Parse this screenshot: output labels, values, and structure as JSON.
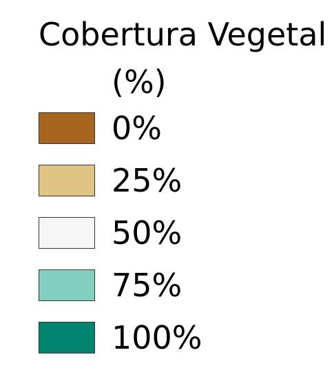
{
  "legend": {
    "title_line1": "Cobertura Vegetal",
    "title_line2": "(%)",
    "items": [
      {
        "label": "0%",
        "color": "#a76520"
      },
      {
        "label": "25%",
        "color": "#dfc484"
      },
      {
        "label": "50%",
        "color": "#f5f5f5"
      },
      {
        "label": "75%",
        "color": "#83d0c1"
      },
      {
        "label": "100%",
        "color": "#018570"
      }
    ]
  }
}
